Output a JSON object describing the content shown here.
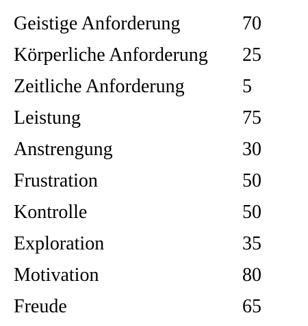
{
  "rows": [
    {
      "label": "Geistige Anforderung",
      "value": "70"
    },
    {
      "label": "Körperliche Anforderung",
      "value": "25"
    },
    {
      "label": "Zeitliche Anforderung",
      "value": "5"
    },
    {
      "label": "Leistung",
      "value": "75"
    },
    {
      "label": "Anstrengung",
      "value": "30"
    },
    {
      "label": "Frustration",
      "value": "50"
    },
    {
      "label": "Kontrolle",
      "value": "50"
    },
    {
      "label": "Exploration",
      "value": "35"
    },
    {
      "label": "Motivation",
      "value": "80"
    },
    {
      "label": "Freude",
      "value": "65"
    }
  ]
}
